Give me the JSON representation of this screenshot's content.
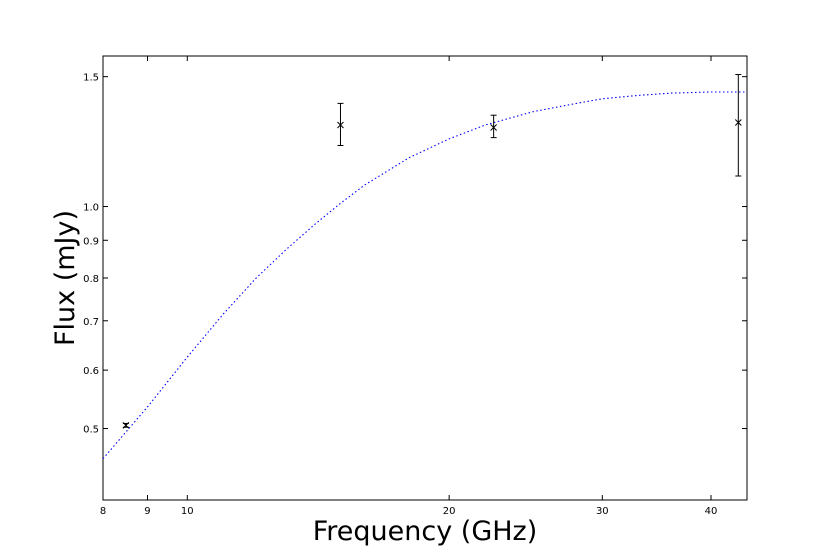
{
  "chart_data": {
    "type": "scatter",
    "title": "",
    "xlabel": "Frequency (GHz)",
    "ylabel": "Flux (mJy)",
    "xscale": "log",
    "yscale": "log",
    "xlim": [
      8,
      44
    ],
    "ylim": [
      0.4,
      1.6
    ],
    "x_ticks": [
      {
        "value": 8,
        "label": "8"
      },
      {
        "value": 9,
        "label": "9"
      },
      {
        "value": 10,
        "label": "10"
      },
      {
        "value": 20,
        "label": "20"
      },
      {
        "value": 30,
        "label": "30"
      },
      {
        "value": 40,
        "label": "40"
      }
    ],
    "y_ticks": [
      {
        "value": 0.5,
        "label": "0.5"
      },
      {
        "value": 0.6,
        "label": "0.6"
      },
      {
        "value": 0.7,
        "label": "0.7"
      },
      {
        "value": 0.8,
        "label": "0.8"
      },
      {
        "value": 0.9,
        "label": "0.9"
      },
      {
        "value": 1.0,
        "label": "1.0"
      },
      {
        "value": 1.5,
        "label": "1.5"
      }
    ],
    "grid": false,
    "points": [
      {
        "x": 8.5,
        "y": 0.505,
        "err_low": 0.003,
        "err_high": 0.003
      },
      {
        "x": 15.0,
        "y": 1.29,
        "err_low": 0.08,
        "err_high": 0.09
      },
      {
        "x": 22.5,
        "y": 1.28,
        "err_low": 0.04,
        "err_high": 0.05
      },
      {
        "x": 43.0,
        "y": 1.3,
        "err_low": 0.2,
        "err_high": 0.21
      }
    ],
    "fit_curve": {
      "style": "dotted",
      "color": "#0000ff",
      "x": [
        8,
        9,
        10,
        11,
        12,
        13,
        14,
        15,
        16,
        18,
        20,
        22,
        25,
        28,
        30,
        33,
        36,
        40,
        44
      ],
      "y": [
        0.455,
        0.535,
        0.625,
        0.715,
        0.8,
        0.875,
        0.945,
        1.01,
        1.07,
        1.165,
        1.235,
        1.29,
        1.345,
        1.38,
        1.4,
        1.415,
        1.425,
        1.43,
        1.43
      ]
    },
    "colors": {
      "points": "#000000",
      "fit": "#0000ff",
      "axes": "#000000"
    }
  }
}
